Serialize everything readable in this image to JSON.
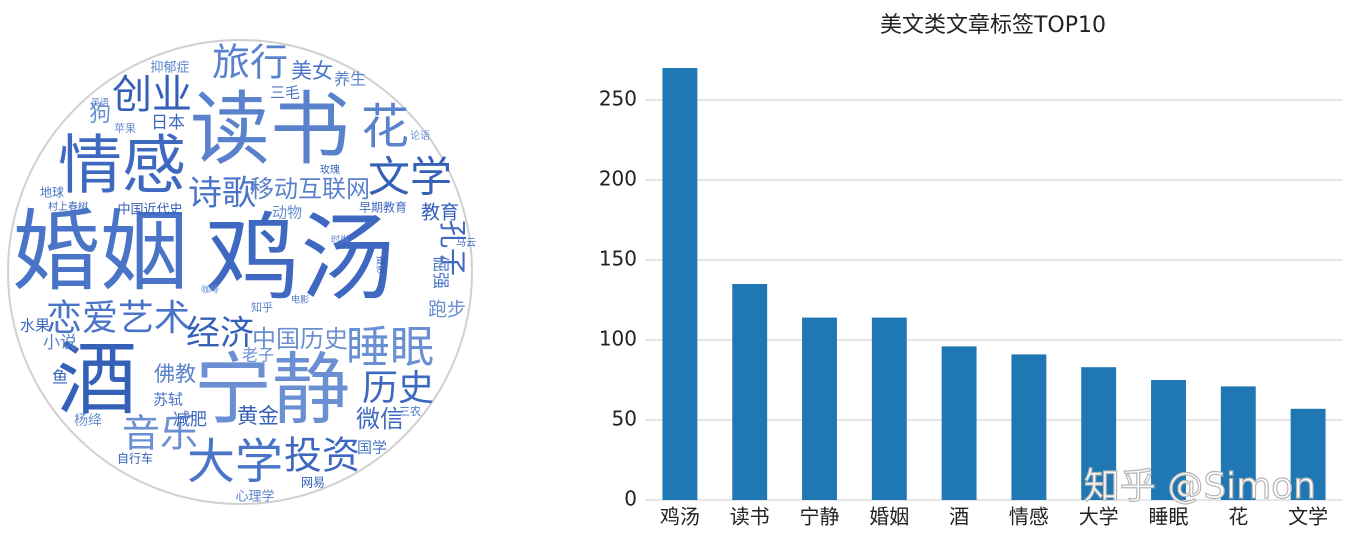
{
  "word_cloud": {
    "words": [
      "鸡汤",
      "婚姻",
      "读书",
      "酒",
      "宁静",
      "情感",
      "大学",
      "花",
      "文学",
      "睡眠",
      "历史",
      "恋爱艺术",
      "旅行",
      "创业",
      "音乐",
      "投资",
      "诗歌",
      "移动互联网",
      "经济",
      "中国历史",
      "微信",
      "美女",
      "养生",
      "教育",
      "跑步",
      "孔子",
      "倔强",
      "佛教",
      "黄金",
      "老子",
      "减肥",
      "苏轼",
      "小说",
      "鱼",
      "杨绛",
      "水果",
      "国学",
      "心理学",
      "网易",
      "狗",
      "日本",
      "三毛",
      "抑郁症",
      "中国近代史",
      "动物",
      "早期教育",
      "地球",
      "知乎",
      "自行车",
      "苹果",
      "村上春树",
      "三农",
      "英语",
      "玫瑰",
      "论语",
      "马云",
      "电影",
      "时尚",
      "摄影",
      "咖啡"
    ]
  },
  "chart_data": {
    "type": "bar",
    "title": "美文类文章标签TOP10",
    "categories": [
      "鸡汤",
      "读书",
      "宁静",
      "婚姻",
      "酒",
      "情感",
      "大学",
      "睡眠",
      "花",
      "文学"
    ],
    "values": [
      270,
      135,
      114,
      114,
      96,
      91,
      83,
      75,
      71,
      57
    ],
    "color": "#1f77b4",
    "ylim": [
      0,
      280
    ],
    "yticks": [
      0,
      50,
      100,
      150,
      200,
      250
    ],
    "grid": true
  },
  "watermark": "知乎 @Simon"
}
